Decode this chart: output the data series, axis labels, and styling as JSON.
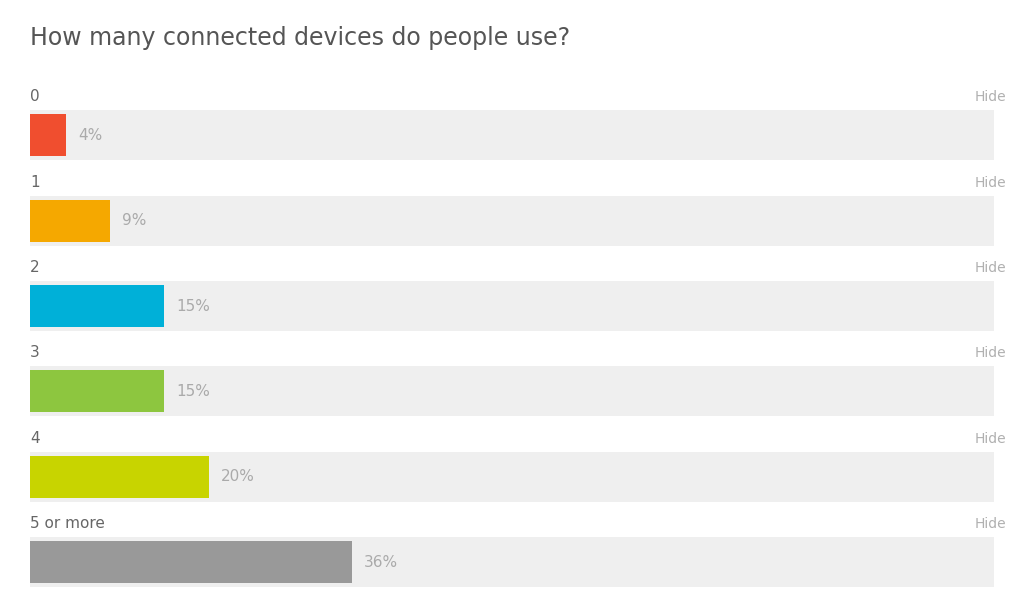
{
  "title": "How many connected devices do people use?",
  "title_fontsize": 17,
  "title_color": "#555555",
  "categories": [
    "0",
    "1",
    "2",
    "3",
    "4",
    "5 or more"
  ],
  "values": [
    4,
    9,
    15,
    15,
    20,
    36
  ],
  "labels": [
    "4%",
    "9%",
    "15%",
    "15%",
    "20%",
    "36%"
  ],
  "bar_colors": [
    "#f04e2f",
    "#f5a800",
    "#00b0d8",
    "#8dc63f",
    "#c8d400",
    "#999999"
  ],
  "bar_bg_color": "#efefef",
  "hide_label": "Hide",
  "hide_color": "#b0b0b0",
  "label_color": "#aaaaaa",
  "cat_color": "#666666",
  "max_value": 100,
  "fig_width": 10.24,
  "fig_height": 6.11
}
